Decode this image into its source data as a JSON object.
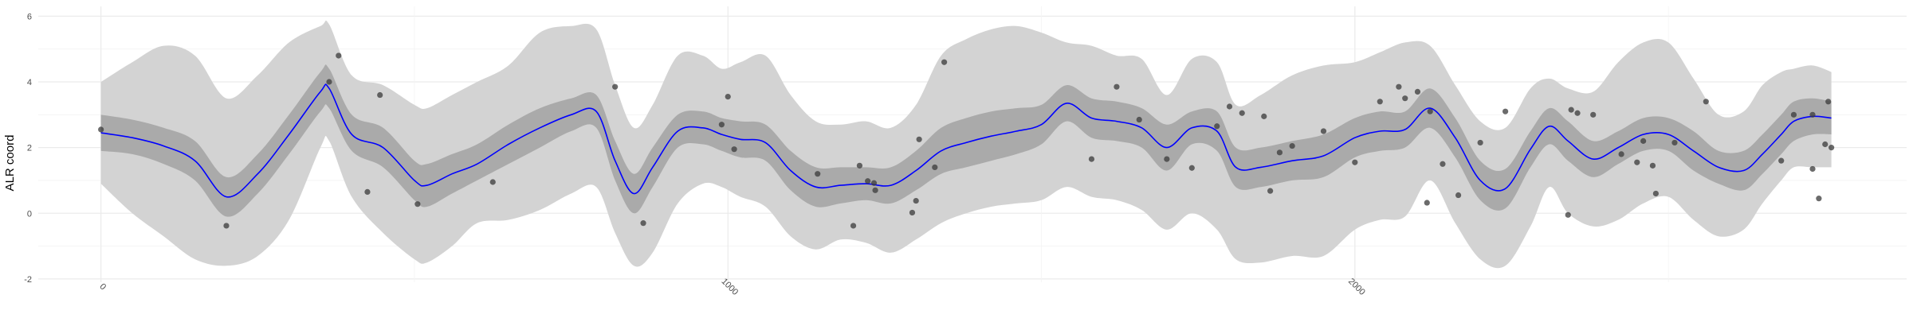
{
  "chart_data": {
    "type": "line",
    "title": "",
    "xlabel": "",
    "ylabel": "ALR coord",
    "xlim": [
      -100,
      2880
    ],
    "ylim": [
      -2.1,
      6.3
    ],
    "x_ticks": [
      0,
      1000,
      2000
    ],
    "y_ticks": [
      -2,
      0,
      2,
      4,
      6
    ],
    "grid": true,
    "legend": "none",
    "colors": {
      "mean_line": "#0000ff",
      "inner_band": "#aaaaaa",
      "outer_band": "#d3d3d3",
      "points": "#3a3a3a",
      "grid": "#ebebeb"
    },
    "series": [
      {
        "role": "posterior-mean",
        "x": [
          0,
          50,
          100,
          150,
          200,
          250,
          300,
          350,
          364,
          400,
          450,
          500,
          520,
          560,
          600,
          650,
          700,
          750,
          790,
          820,
          850,
          880,
          920,
          960,
          990,
          1020,
          1060,
          1100,
          1140,
          1180,
          1220,
          1260,
          1300,
          1340,
          1380,
          1420,
          1460,
          1500,
          1540,
          1580,
          1620,
          1660,
          1700,
          1740,
          1780,
          1810,
          1850,
          1900,
          1950,
          2000,
          2040,
          2080,
          2120,
          2160,
          2200,
          2240,
          2280,
          2310,
          2340,
          2380,
          2420,
          2460,
          2500,
          2540,
          2580,
          2620,
          2650,
          2680,
          2700,
          2730,
          2760
        ],
        "y": [
          2.45,
          2.3,
          2.05,
          1.6,
          0.5,
          1.2,
          2.4,
          3.7,
          3.8,
          2.4,
          2.0,
          1.0,
          0.85,
          1.2,
          1.5,
          2.1,
          2.6,
          3.0,
          3.1,
          1.6,
          0.6,
          1.4,
          2.5,
          2.6,
          2.4,
          2.25,
          2.15,
          1.3,
          0.8,
          0.85,
          0.9,
          0.85,
          1.3,
          1.9,
          2.15,
          2.35,
          2.5,
          2.7,
          3.35,
          2.9,
          2.8,
          2.6,
          2.0,
          2.6,
          2.5,
          1.4,
          1.4,
          1.6,
          1.75,
          2.3,
          2.5,
          2.55,
          3.2,
          2.3,
          1.0,
          0.75,
          1.95,
          2.65,
          2.2,
          1.65,
          2.0,
          2.4,
          2.4,
          1.9,
          1.4,
          1.3,
          1.8,
          2.4,
          2.8,
          2.95,
          2.9
        ]
      },
      {
        "role": "inner-band",
        "x": [
          0,
          50,
          100,
          150,
          200,
          250,
          300,
          350,
          364,
          400,
          450,
          500,
          520,
          560,
          600,
          650,
          700,
          750,
          790,
          820,
          850,
          880,
          920,
          960,
          990,
          1020,
          1060,
          1100,
          1140,
          1180,
          1220,
          1260,
          1300,
          1340,
          1380,
          1420,
          1460,
          1500,
          1540,
          1580,
          1620,
          1660,
          1700,
          1740,
          1780,
          1810,
          1850,
          1900,
          1950,
          2000,
          2040,
          2080,
          2120,
          2160,
          2200,
          2240,
          2280,
          2310,
          2340,
          2380,
          2420,
          2460,
          2500,
          2540,
          2580,
          2620,
          2650,
          2680,
          2700,
          2730,
          2760
        ],
        "lower": [
          1.9,
          1.8,
          1.5,
          1.0,
          -0.1,
          0.6,
          1.8,
          3.1,
          3.2,
          1.9,
          1.4,
          0.4,
          0.2,
          0.6,
          1.0,
          1.5,
          2.0,
          2.5,
          2.6,
          1.0,
          0.0,
          0.8,
          2.0,
          2.1,
          1.9,
          1.7,
          1.6,
          0.7,
          0.2,
          0.3,
          0.4,
          0.3,
          0.7,
          1.2,
          1.4,
          1.6,
          1.8,
          2.1,
          2.8,
          2.3,
          2.2,
          2.0,
          1.3,
          2.1,
          1.9,
          0.8,
          0.8,
          1.0,
          1.1,
          1.7,
          1.9,
          2.0,
          2.6,
          1.7,
          0.4,
          0.15,
          1.4,
          2.1,
          1.6,
          1.1,
          1.5,
          1.9,
          1.9,
          1.3,
          0.9,
          0.7,
          1.2,
          1.8,
          2.2,
          2.4,
          2.4
        ],
        "upper": [
          3.0,
          2.85,
          2.6,
          2.2,
          1.1,
          1.8,
          3.0,
          4.3,
          4.4,
          3.0,
          2.6,
          1.6,
          1.5,
          1.8,
          2.1,
          2.7,
          3.2,
          3.5,
          3.6,
          2.2,
          1.2,
          2.0,
          3.0,
          3.1,
          2.9,
          2.8,
          2.7,
          1.9,
          1.4,
          1.4,
          1.4,
          1.4,
          1.9,
          2.6,
          2.9,
          3.1,
          3.2,
          3.3,
          3.9,
          3.5,
          3.4,
          3.2,
          2.7,
          3.1,
          3.1,
          2.0,
          2.0,
          2.2,
          2.4,
          2.9,
          3.1,
          3.1,
          3.8,
          2.9,
          1.6,
          1.35,
          2.5,
          3.2,
          2.8,
          2.2,
          2.5,
          2.9,
          2.9,
          2.5,
          1.9,
          1.9,
          2.4,
          3.0,
          3.4,
          3.5,
          3.4
        ]
      },
      {
        "role": "outer-band",
        "x": [
          0,
          50,
          100,
          150,
          200,
          250,
          300,
          350,
          364,
          400,
          450,
          500,
          520,
          560,
          600,
          650,
          700,
          750,
          790,
          820,
          850,
          880,
          920,
          960,
          990,
          1020,
          1060,
          1100,
          1140,
          1180,
          1220,
          1260,
          1300,
          1340,
          1380,
          1420,
          1460,
          1500,
          1540,
          1580,
          1620,
          1660,
          1700,
          1740,
          1780,
          1810,
          1850,
          1900,
          1950,
          2000,
          2040,
          2080,
          2120,
          2160,
          2200,
          2240,
          2280,
          2310,
          2340,
          2380,
          2420,
          2460,
          2500,
          2540,
          2580,
          2620,
          2650,
          2680,
          2700,
          2730,
          2760
        ],
        "lower": [
          0.9,
          0.0,
          -0.7,
          -1.4,
          -1.6,
          -1.3,
          -0.2,
          2.0,
          2.2,
          0.5,
          -0.6,
          -1.4,
          -1.5,
          -1.0,
          -0.3,
          -0.2,
          0.1,
          0.6,
          0.8,
          -0.6,
          -1.6,
          -1.2,
          0.3,
          0.9,
          0.8,
          0.5,
          0.2,
          -0.7,
          -1.1,
          -0.8,
          -0.9,
          -1.2,
          -0.8,
          -0.3,
          0.0,
          0.2,
          0.3,
          0.4,
          0.8,
          0.5,
          0.4,
          0.1,
          -0.5,
          0.0,
          -0.5,
          -1.4,
          -1.5,
          -1.3,
          -1.3,
          -0.5,
          -0.2,
          -0.1,
          1.0,
          -0.3,
          -1.4,
          -1.6,
          -0.4,
          0.8,
          0.0,
          -0.4,
          -0.2,
          0.3,
          0.5,
          -0.2,
          -0.7,
          -0.5,
          0.3,
          1.0,
          1.4,
          1.4,
          1.4
        ],
        "upper": [
          4.0,
          4.6,
          5.1,
          4.8,
          3.5,
          4.2,
          5.2,
          5.7,
          5.75,
          4.2,
          3.9,
          3.3,
          3.2,
          3.6,
          4.0,
          4.5,
          5.5,
          5.7,
          5.6,
          3.9,
          2.6,
          3.3,
          4.8,
          4.8,
          4.4,
          4.6,
          4.8,
          3.6,
          2.8,
          2.7,
          2.8,
          2.6,
          3.3,
          4.8,
          5.3,
          5.6,
          5.7,
          5.5,
          5.2,
          5.1,
          4.8,
          4.7,
          3.6,
          4.7,
          4.6,
          3.3,
          3.6,
          4.2,
          4.5,
          4.6,
          4.9,
          5.2,
          5.1,
          3.9,
          2.8,
          2.6,
          3.8,
          4.1,
          3.8,
          3.7,
          4.6,
          5.2,
          5.2,
          4.1,
          3.0,
          3.1,
          3.9,
          4.3,
          4.4,
          4.5,
          4.3
        ]
      },
      {
        "role": "observations",
        "x": [
          0,
          200,
          364,
          379,
          425,
          445,
          505,
          625,
          820,
          865,
          990,
          1000,
          1010,
          1143,
          1200,
          1210,
          1233,
          1223,
          1235,
          1294,
          1300,
          1305,
          1330,
          1345,
          1580,
          1620,
          1656,
          1700,
          1740,
          1780,
          1800,
          1820,
          1855,
          1865,
          1880,
          1900,
          1950,
          2000,
          2040,
          2070,
          2080,
          2100,
          2115,
          2120,
          2140,
          2165,
          2200,
          2240,
          2340,
          2345,
          2355,
          2380,
          2425,
          2450,
          2460,
          2475,
          2480,
          2510,
          2560,
          2680,
          2700,
          2730,
          2755,
          2730,
          2740,
          2750,
          2760
        ],
        "y": [
          2.55,
          -0.38,
          4.0,
          4.8,
          0.65,
          3.6,
          0.28,
          0.95,
          3.85,
          -0.3,
          2.7,
          3.55,
          1.95,
          1.2,
          -0.38,
          1.45,
          0.92,
          0.98,
          0.7,
          0.02,
          0.38,
          2.25,
          1.4,
          4.6,
          1.65,
          3.85,
          2.85,
          1.65,
          1.38,
          2.65,
          3.25,
          3.05,
          2.95,
          0.68,
          1.85,
          2.05,
          2.5,
          1.55,
          3.4,
          3.85,
          3.5,
          3.7,
          0.32,
          3.1,
          1.5,
          0.55,
          2.15,
          3.1,
          -0.05,
          3.15,
          3.05,
          3.0,
          1.8,
          1.55,
          2.2,
          1.45,
          0.6,
          2.15,
          3.4,
          1.6,
          3.0,
          3.0,
          3.4,
          1.35,
          0.45,
          2.1,
          2.0
        ]
      }
    ]
  }
}
